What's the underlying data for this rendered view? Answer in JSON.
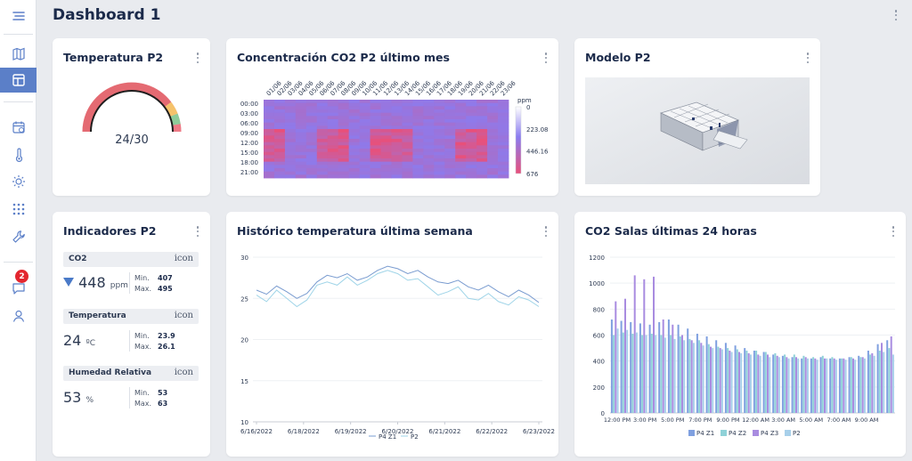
{
  "header": {
    "title": "Dashboard 1"
  },
  "sidebar": {
    "items": [
      {
        "icon": "menu-icon"
      },
      {
        "icon": "map-icon"
      },
      {
        "icon": "dashboard-icon",
        "active": true
      },
      {
        "icon": "calendar-icon"
      },
      {
        "icon": "thermometer-icon"
      },
      {
        "icon": "sun-icon"
      },
      {
        "icon": "grid-icon"
      },
      {
        "icon": "wrench-icon"
      },
      {
        "icon": "chat-icon",
        "badge": "2"
      },
      {
        "icon": "user-icon"
      }
    ],
    "accent": "#5b7fc8",
    "badge_color": "#e3262f"
  },
  "cards": {
    "temperatura": {
      "title": "Temperatura P2",
      "value_text": "24/30",
      "value": 24,
      "max": 30
    },
    "co2_heatmap": {
      "title": "Concentración CO2 P2 último mes"
    },
    "modelo": {
      "title": "Modelo P2"
    },
    "indicadores": {
      "title": "Indicadores P2",
      "items": [
        {
          "label": "CO2",
          "icon_text": "icon",
          "value": "448",
          "unit": "ppm",
          "min_label": "Min.",
          "min": "407",
          "max_label": "Max.",
          "max": "495",
          "trend": "down"
        },
        {
          "label": "Temperatura",
          "icon_text": "icon",
          "value": "24",
          "unit": "ºC",
          "min_label": "Min.",
          "min": "23.9",
          "max_label": "Max.",
          "max": "26.1"
        },
        {
          "label": "Humedad Relativa",
          "icon_text": "icon",
          "value": "53",
          "unit": "%",
          "min_label": "Min.",
          "min": "53",
          "max_label": "Max.",
          "max": "63"
        }
      ]
    },
    "historico": {
      "title": "Histórico temperatura última semana"
    },
    "co2_salas": {
      "title": "CO2 Salas últimas 24 horas"
    }
  },
  "chart_data": [
    {
      "type": "heatmap",
      "title": "Concentración CO2 P2 último mes",
      "x_categories": [
        "01/06",
        "02/06",
        "03/06",
        "04/06",
        "05/06",
        "06/06",
        "07/06",
        "08/06",
        "09/06",
        "10/06",
        "11/06",
        "12/06",
        "13/06",
        "14/06",
        "15/06",
        "16/06",
        "17/06",
        "18/06",
        "19/06",
        "20/06",
        "21/06",
        "22/06",
        "23/06"
      ],
      "y_categories": [
        "00:00",
        "03:00",
        "06:00",
        "09:00",
        "12:00",
        "15:00",
        "18:00",
        "21:00"
      ],
      "color_scale": {
        "label": "ppm",
        "ticks": [
          0,
          223.08,
          446.16,
          676
        ],
        "min_color": "#8a7cf0",
        "max_color": "#e8507a"
      },
      "high_columns": [
        0,
        1,
        5,
        6,
        7,
        10,
        11,
        12,
        13,
        18,
        19,
        20
      ],
      "high_hours": [
        9,
        18
      ]
    },
    {
      "type": "line",
      "title": "Histórico temperatura última semana",
      "x_ticks": [
        "6/16/2022",
        "6/18/2022",
        "6/19/2022",
        "6/20/2022",
        "6/21/2022",
        "6/22/2022",
        "6/23/2022"
      ],
      "ylim": [
        10,
        30
      ],
      "y_ticks": [
        10,
        15,
        20,
        25,
        30
      ],
      "legend_position": "bottom",
      "series": [
        {
          "name": "P4 Z1",
          "color": "#7a9cd0",
          "values": [
            26,
            25.5,
            26.5,
            25.8,
            25,
            25.6,
            27,
            27.8,
            27.5,
            28,
            27.2,
            27.6,
            28.4,
            28.9,
            28.6,
            28,
            28.4,
            27.6,
            27,
            26.8,
            27.2,
            26.4,
            26,
            26.6,
            25.8,
            25.2,
            26,
            25.4,
            24.5
          ]
        },
        {
          "name": "P2",
          "color": "#9fd4e8",
          "values": [
            25.4,
            24.6,
            26,
            25,
            24,
            24.8,
            26.6,
            27,
            26.6,
            27.6,
            26.6,
            27.2,
            28,
            28.4,
            28,
            27.2,
            27.4,
            26.4,
            25.4,
            25.8,
            26.4,
            25,
            24.8,
            25.6,
            24.6,
            24.2,
            25.2,
            24.8,
            24
          ]
        }
      ]
    },
    {
      "type": "bar",
      "title": "CO2 Salas últimas 24 horas",
      "ylim": [
        0,
        1200
      ],
      "y_ticks": [
        0,
        200,
        400,
        600,
        800,
        1000,
        1200
      ],
      "x_ticks": [
        "12:00 PM",
        "3:00 PM",
        "5:00 PM",
        "7:00 PM",
        "9:00 PM",
        "12:00 AM",
        "3:00 AM",
        "5:00 AM",
        "7:00 AM",
        "9:00 AM"
      ],
      "legend_position": "bottom",
      "series": [
        {
          "name": "P4 Z1",
          "color": "#7fa0e0",
          "values": [
            720,
            710,
            700,
            690,
            680,
            700,
            720,
            680,
            650,
            610,
            590,
            560,
            540,
            520,
            500,
            480,
            470,
            450,
            440,
            430,
            420,
            420,
            430,
            420,
            420,
            430,
            440,
            480,
            530,
            560
          ]
        },
        {
          "name": "P4 Z2",
          "color": "#8fd2d8",
          "values": [
            600,
            620,
            610,
            600,
            610,
            600,
            600,
            590,
            570,
            560,
            530,
            510,
            500,
            490,
            480,
            480,
            470,
            460,
            450,
            450,
            440,
            430,
            440,
            430,
            420,
            430,
            430,
            450,
            480,
            500
          ]
        },
        {
          "name": "P4 Z3",
          "color": "#a98ce0",
          "values": [
            860,
            880,
            1060,
            1030,
            1050,
            720,
            680,
            600,
            560,
            540,
            510,
            500,
            480,
            470,
            460,
            450,
            450,
            440,
            430,
            430,
            430,
            420,
            420,
            420,
            420,
            420,
            430,
            460,
            540,
            590
          ]
        },
        {
          "name": "P2",
          "color": "#a8d0ea",
          "values": [
            650,
            640,
            620,
            600,
            600,
            580,
            570,
            560,
            540,
            520,
            500,
            490,
            470,
            460,
            450,
            440,
            430,
            430,
            420,
            420,
            420,
            410,
            420,
            410,
            410,
            410,
            420,
            440,
            470,
            450
          ]
        }
      ]
    }
  ]
}
